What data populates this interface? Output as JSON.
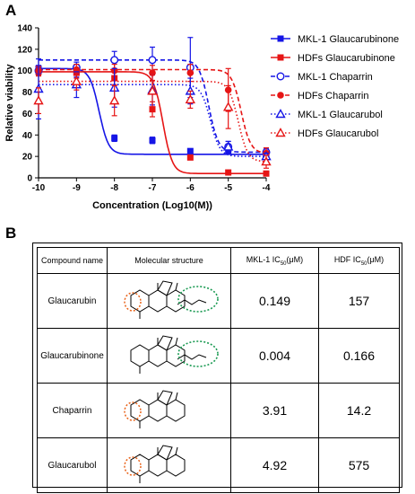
{
  "panel_a": "A",
  "panel_b": "B",
  "chart_data": {
    "type": "scatter",
    "title": "",
    "xlabel": "Concentration (Log10(M))",
    "ylabel": "Relative viability",
    "xlim": [
      -10,
      -4
    ],
    "ylim": [
      0,
      140
    ],
    "x_ticks": [
      "-10",
      "-9",
      "-8",
      "-7",
      "-6",
      "-5",
      "-4"
    ],
    "y_ticks": [
      "0",
      "20",
      "40",
      "60",
      "80",
      "100",
      "120",
      "140"
    ],
    "legend_position": "right",
    "series": [
      {
        "name": "MKL-1 Glaucarubinone",
        "color": "#1515e6",
        "marker": "square",
        "line": "solid",
        "x": [
          -10,
          -9,
          -8,
          -7,
          -6,
          -5,
          -4
        ],
        "y": [
          102,
          99,
          37,
          35,
          25,
          25,
          22
        ],
        "err": [
          3,
          5,
          3,
          3,
          2,
          2,
          2
        ]
      },
      {
        "name": "HDFs Glaucarubinone",
        "color": "#e61515",
        "marker": "square",
        "line": "solid",
        "x": [
          -10,
          -9,
          -8,
          -7,
          -6,
          -5,
          -4
        ],
        "y": [
          99,
          98,
          93,
          64,
          19,
          5,
          4
        ],
        "err": [
          4,
          5,
          6,
          7,
          2,
          1,
          1
        ]
      },
      {
        "name": "MKL-1 Chaparrin",
        "color": "#1515e6",
        "marker": "open-circle",
        "line": "dashed",
        "x": [
          -10,
          -9,
          -8,
          -7,
          -6,
          -5,
          -4
        ],
        "y": [
          100,
          103,
          110,
          110,
          103,
          29,
          24
        ],
        "err": [
          4,
          5,
          8,
          12,
          28,
          5,
          3
        ]
      },
      {
        "name": "HDFs Chaparrin",
        "color": "#e61515",
        "marker": "circle",
        "line": "dashed",
        "x": [
          -10,
          -9,
          -8,
          -7,
          -6,
          -5,
          -4
        ],
        "y": [
          100,
          101,
          100,
          98,
          98,
          82,
          23
        ],
        "err": [
          4,
          5,
          6,
          7,
          8,
          20,
          5
        ]
      },
      {
        "name": "MKL-1 Glaucarubol",
        "color": "#1515e6",
        "marker": "open-triangle",
        "line": "dotted",
        "x": [
          -10,
          -9,
          -8,
          -7,
          -6,
          -5,
          -4
        ],
        "y": [
          83,
          87,
          84,
          82,
          81,
          29,
          20
        ],
        "err": [
          28,
          12,
          18,
          14,
          12,
          5,
          3
        ]
      },
      {
        "name": "HDFs Glaucarubol",
        "color": "#e61515",
        "marker": "open-triangle",
        "line": "dotted",
        "x": [
          -10,
          -9,
          -8,
          -7,
          -6,
          -5,
          -4
        ],
        "y": [
          72,
          90,
          72,
          81,
          73,
          66,
          15
        ],
        "err": [
          12,
          8,
          14,
          15,
          8,
          20,
          6
        ]
      }
    ]
  },
  "table": {
    "headers": {
      "name": "Compound name",
      "structure": "Molecular structure",
      "mkl": "MKL-1 IC",
      "hdf": "HDF IC",
      "sub": "50",
      "unit": "(μM)"
    },
    "rows": [
      {
        "name": "Glaucarubin",
        "mkl": "0.149",
        "hdf": "157"
      },
      {
        "name": "Glaucarubinone",
        "mkl": "0.004",
        "hdf": "0.166"
      },
      {
        "name": "Chaparrin",
        "mkl": "3.91",
        "hdf": "14.2"
      },
      {
        "name": "Glaucarubol",
        "mkl": "4.92",
        "hdf": "575"
      }
    ]
  }
}
